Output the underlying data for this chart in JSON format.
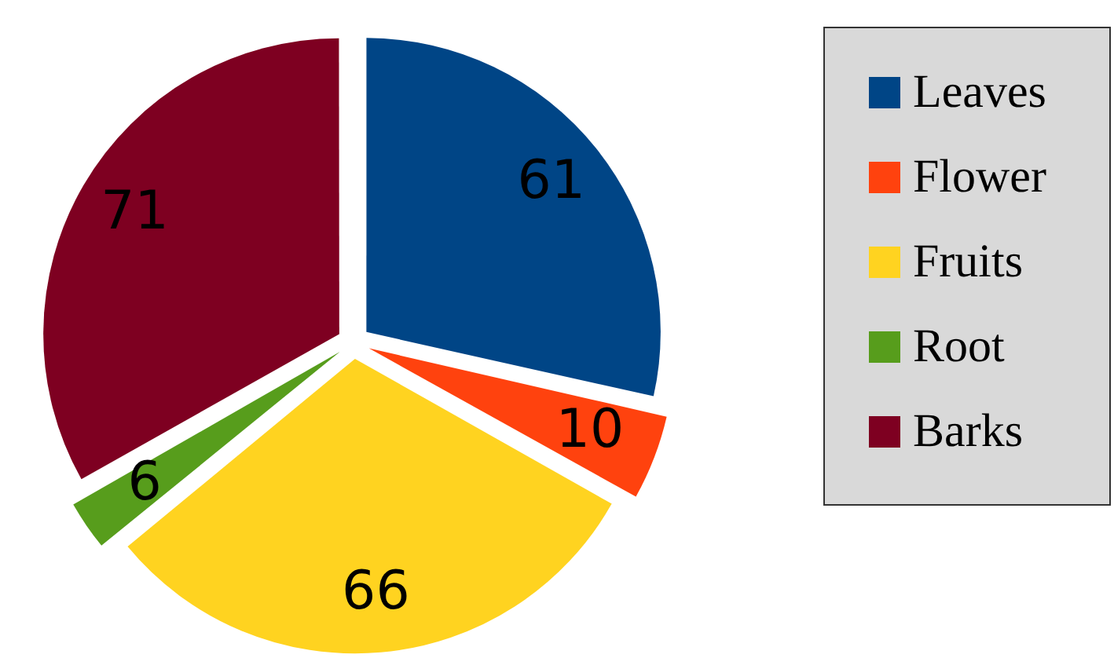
{
  "chart_data": {
    "type": "pie",
    "categories": [
      "Leaves",
      "Flower",
      "Fruits",
      "Root",
      "Barks"
    ],
    "values": [
      61,
      10,
      66,
      6,
      71
    ],
    "colors": [
      "#004586",
      "#ff420e",
      "#ffd320",
      "#579d1c",
      "#7e0021"
    ],
    "data_labels": true,
    "legend": "right"
  }
}
